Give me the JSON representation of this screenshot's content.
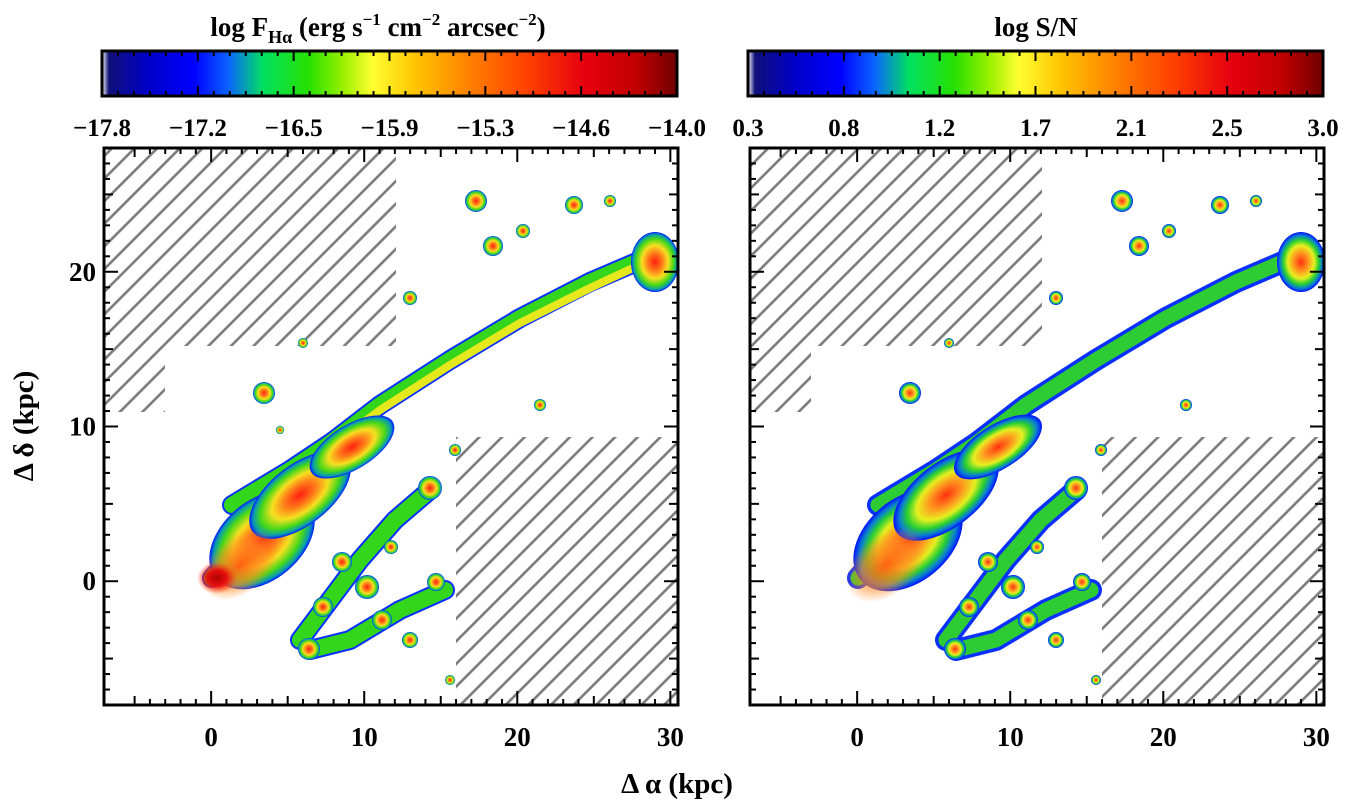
{
  "figure": {
    "xlabel": "Δ α (kpc)",
    "ylabel": "Δ δ (kpc)"
  },
  "colors": {
    "hatch": "#7a7a7a",
    "axes": "#000000",
    "background": "#ffffff"
  },
  "chart_data": [
    {
      "type": "heatmap",
      "title": {
        "base": "log F",
        "sub": "Hα",
        "part1": " (erg s",
        "sup1": "−1",
        "part2": " cm",
        "sup2": "−2",
        "part3": " arcsec",
        "sup3": "−2",
        "part4": ")"
      },
      "colorbar": {
        "ticks": [
          "−17.8",
          "−17.2",
          "−16.5",
          "−15.9",
          "−15.3",
          "−14.6",
          "−14.0"
        ],
        "range": [
          -17.8,
          -14.0
        ]
      },
      "xlim": [
        -7,
        30.5
      ],
      "ylim": [
        -8,
        28
      ],
      "xticks": [
        "0",
        "10",
        "20",
        "30"
      ],
      "xtick_values": [
        0,
        10,
        20,
        30
      ],
      "yticks": [
        "0",
        "10",
        "20"
      ],
      "ytick_values": [
        0,
        10,
        20
      ],
      "grid": false,
      "masked_regions": "hatched"
    },
    {
      "type": "heatmap",
      "title": {
        "base": "log S/N"
      },
      "colorbar": {
        "ticks": [
          "0.3",
          "0.8",
          "1.2",
          "1.7",
          "2.1",
          "2.5",
          "3.0"
        ],
        "range": [
          0.3,
          3.0
        ]
      },
      "xlim": [
        -7,
        30.5
      ],
      "ylim": [
        -8,
        28
      ],
      "xticks": [
        "0",
        "10",
        "20",
        "30"
      ],
      "xtick_values": [
        0,
        10,
        20,
        30
      ],
      "grid": false,
      "masked_regions": "hatched"
    }
  ]
}
